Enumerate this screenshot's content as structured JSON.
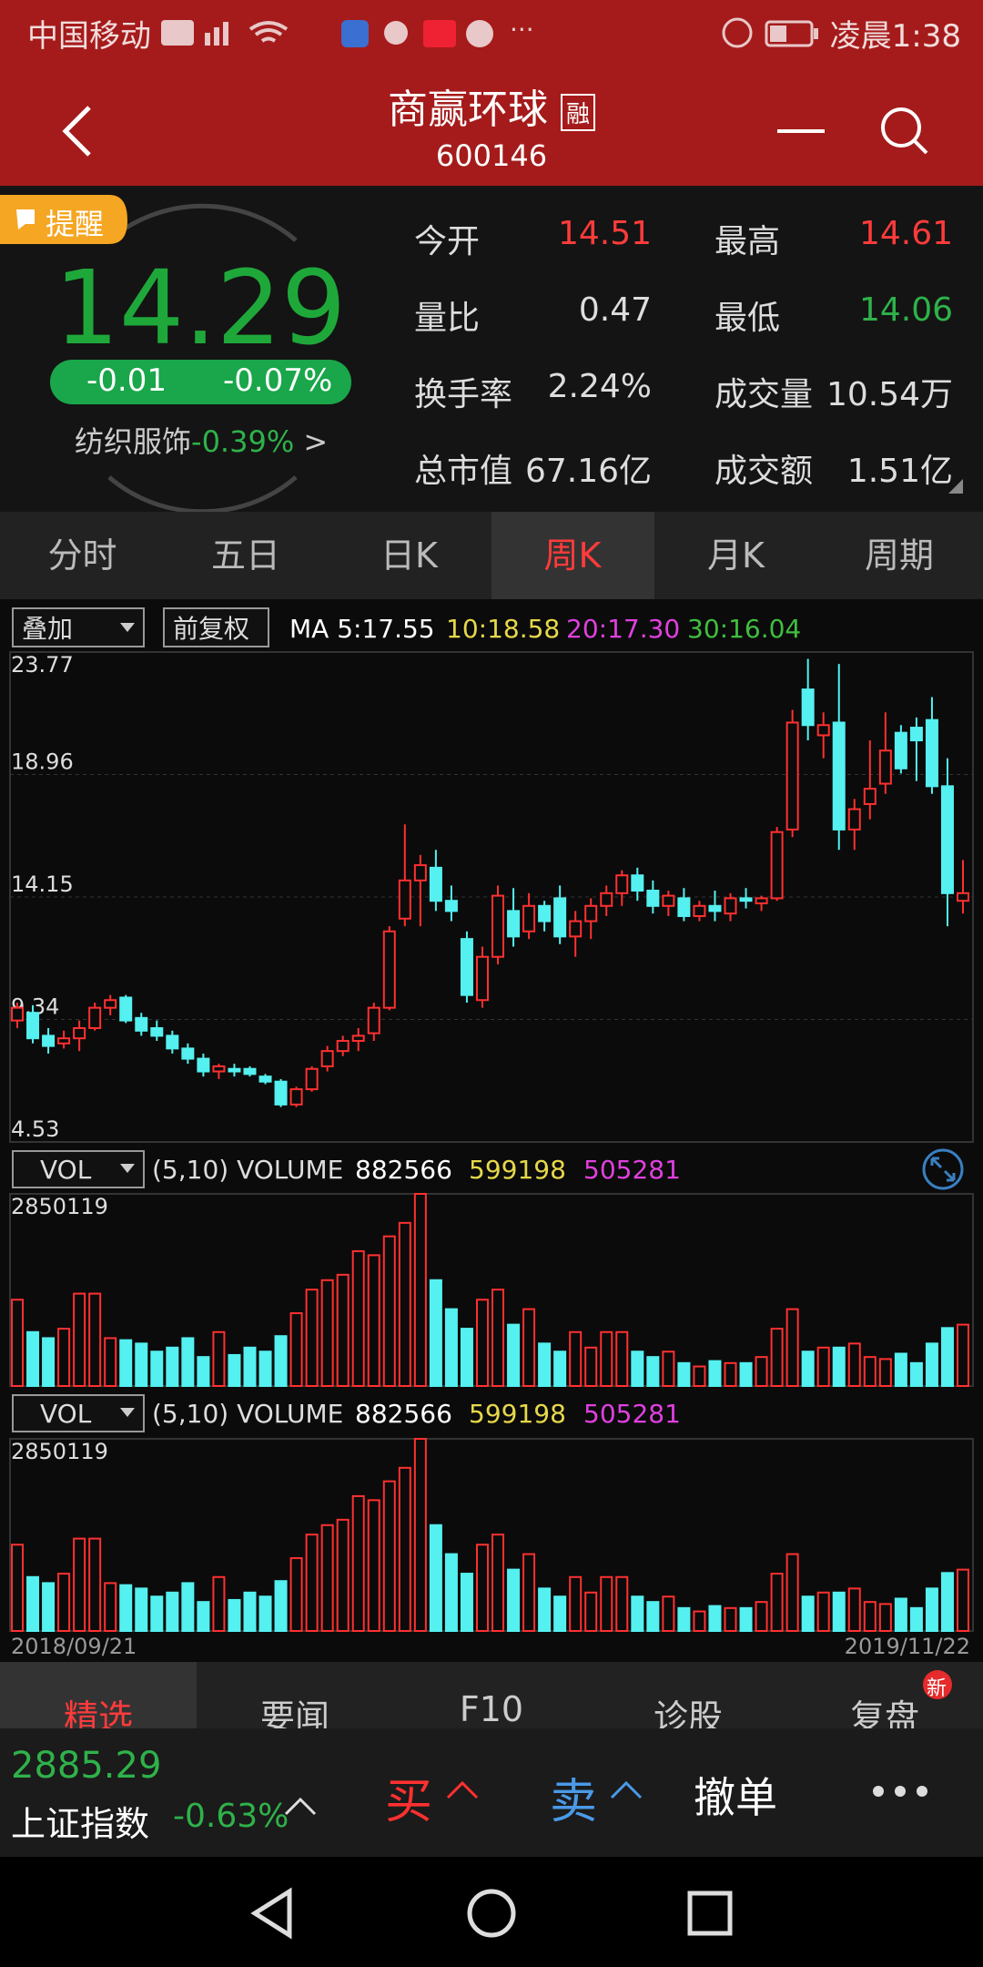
{
  "status_bar": {
    "carrier": "中国移动",
    "time": "凌晨1:38"
  },
  "header": {
    "title": "商赢环球",
    "badge": "融",
    "code": "600146"
  },
  "quote": {
    "remind": "提醒",
    "price": "14.29",
    "change": "-0.01",
    "change_pct": "-0.07%",
    "sector": "纺织服饰",
    "sector_change": "-0.39%",
    "sector_arrow": ">",
    "stats": [
      {
        "label": "今开",
        "value": "14.51"
      },
      {
        "label": "最高",
        "value": "14.61"
      },
      {
        "label": "量比",
        "value": "0.47"
      },
      {
        "label": "最低",
        "value": "14.06"
      },
      {
        "label": "换手率",
        "value": "2.24%"
      },
      {
        "label": "成交量",
        "value": "10.54万"
      },
      {
        "label": "总市值",
        "value": "67.16亿"
      },
      {
        "label": "成交额",
        "value": "1.51亿"
      }
    ]
  },
  "tabs": [
    "分时",
    "五日",
    "日K",
    "周K",
    "月K",
    "周期"
  ],
  "chart_data": {
    "type": "candlestick",
    "overlay": "叠加",
    "adjust": "前复权",
    "ma_legend": [
      {
        "text": "MA 5:17.55",
        "color": "#ffffff"
      },
      {
        "text": "10:18.58",
        "color": "#e6d84a"
      },
      {
        "text": "20:17.30",
        "color": "#e040e0"
      },
      {
        "text": "30:16.04",
        "color": "#3fbf3f"
      }
    ],
    "ylim": [
      4.53,
      23.77
    ],
    "yticks": [
      23.77,
      18.96,
      14.15,
      9.34,
      4.53
    ],
    "x_start": "2018/09/21",
    "x_end": "2019/11/22",
    "up_color": "#ff3030",
    "down_color": "#55f0f0",
    "open": [
      9.3,
      9.6,
      8.7,
      8.4,
      8.6,
      9.0,
      9.8,
      10.2,
      9.4,
      9.0,
      8.7,
      8.2,
      7.8,
      7.3,
      7.4,
      7.4,
      7.1,
      6.9,
      6.0,
      6.6,
      7.5,
      8.1,
      8.5,
      8.8,
      9.8,
      13.3,
      14.8,
      15.3,
      14.0,
      12.5,
      10.1,
      11.8,
      13.6,
      12.8,
      13.8,
      14.1,
      12.6,
      13.2,
      13.8,
      14.3,
      15.0,
      14.4,
      13.8,
      14.1,
      13.4,
      13.8,
      13.5,
      14.1,
      13.9,
      14.1,
      16.8,
      22.3,
      20.5,
      21.0,
      16.8,
      17.8,
      18.6,
      20.6,
      20.8,
      21.1,
      18.5,
      14.0
    ],
    "high": [
      10.0,
      9.9,
      9.0,
      8.9,
      9.3,
      10.0,
      10.3,
      10.3,
      9.6,
      9.3,
      8.9,
      8.4,
      8.0,
      7.6,
      7.6,
      7.5,
      7.2,
      7.0,
      6.7,
      7.5,
      8.3,
      8.7,
      9.0,
      10.0,
      13.0,
      17.0,
      15.8,
      16.0,
      14.6,
      12.8,
      12.2,
      14.6,
      14.5,
      14.3,
      14.0,
      14.6,
      13.6,
      14.1,
      14.6,
      15.2,
      15.3,
      14.8,
      14.4,
      14.5,
      14.0,
      14.4,
      14.3,
      14.5,
      14.2,
      16.9,
      21.5,
      23.5,
      21.4,
      23.3,
      18.0,
      20.3,
      21.4,
      20.9,
      21.2,
      22.0,
      19.6,
      15.6
    ],
    "low": [
      9.0,
      8.4,
      8.0,
      8.2,
      8.1,
      8.9,
      9.5,
      9.2,
      8.7,
      8.5,
      8.0,
      7.6,
      7.1,
      7.0,
      7.1,
      7.1,
      6.8,
      5.9,
      5.9,
      6.5,
      7.3,
      7.9,
      8.1,
      8.5,
      9.7,
      13.0,
      13.0,
      13.6,
      13.2,
      10.0,
      9.8,
      11.5,
      12.2,
      12.5,
      12.8,
      12.3,
      11.8,
      12.5,
      13.4,
      13.8,
      14.0,
      13.5,
      13.4,
      13.2,
      13.2,
      13.2,
      13.2,
      13.7,
      13.6,
      14.0,
      16.5,
      20.3,
      19.6,
      16.0,
      16.0,
      17.2,
      18.2,
      19.0,
      18.7,
      18.2,
      13.0,
      13.5
    ],
    "close": [
      9.8,
      8.6,
      8.3,
      8.6,
      9.0,
      9.8,
      10.1,
      9.3,
      8.9,
      8.7,
      8.2,
      7.8,
      7.3,
      7.5,
      7.3,
      7.2,
      6.9,
      6.0,
      6.6,
      7.4,
      8.1,
      8.5,
      8.7,
      9.8,
      12.8,
      14.8,
      15.4,
      14.0,
      13.6,
      10.3,
      11.8,
      14.2,
      12.6,
      13.8,
      13.2,
      12.6,
      13.2,
      13.8,
      14.3,
      15.0,
      14.4,
      13.8,
      14.2,
      13.4,
      13.8,
      13.6,
      14.1,
      14.0,
      14.1,
      16.7,
      21.0,
      20.9,
      20.9,
      16.8,
      17.6,
      18.4,
      19.9,
      19.2,
      20.3,
      18.5,
      14.3,
      14.3
    ],
    "volume": {
      "selector": "VOL",
      "params": "(5,10) VOLUME",
      "legend": [
        {
          "text": "882566",
          "color": "#ffffff"
        },
        {
          "text": "599198",
          "color": "#e6d84a"
        },
        {
          "text": "505281",
          "color": "#e040e0"
        }
      ],
      "ylim": [
        0,
        2850119
      ],
      "yticks": [
        2850119
      ],
      "values": [
        1280000,
        800000,
        710000,
        850000,
        1370000,
        1370000,
        710000,
        680000,
        630000,
        510000,
        570000,
        710000,
        430000,
        800000,
        460000,
        570000,
        510000,
        740000,
        1080000,
        1430000,
        1570000,
        1650000,
        2000000,
        1940000,
        2220000,
        2420000,
        2850119,
        1570000,
        1140000,
        850000,
        1280000,
        1430000,
        910000,
        1140000,
        630000,
        510000,
        800000,
        570000,
        800000,
        800000,
        510000,
        430000,
        510000,
        340000,
        290000,
        370000,
        340000,
        340000,
        430000,
        850000,
        1140000,
        510000,
        570000,
        570000,
        630000,
        430000,
        400000,
        480000,
        340000,
        630000,
        860000,
        910000
      ]
    }
  },
  "footer_tabs": [
    "精选",
    "要闻",
    "F10",
    "诊股",
    "复盘"
  ],
  "new_badge": "新",
  "bottom_bar": {
    "index_value": "2885.29",
    "index_name": "上证指数",
    "index_change": "-0.63%",
    "buy": "买",
    "sell": "卖",
    "cancel": "撤单"
  }
}
